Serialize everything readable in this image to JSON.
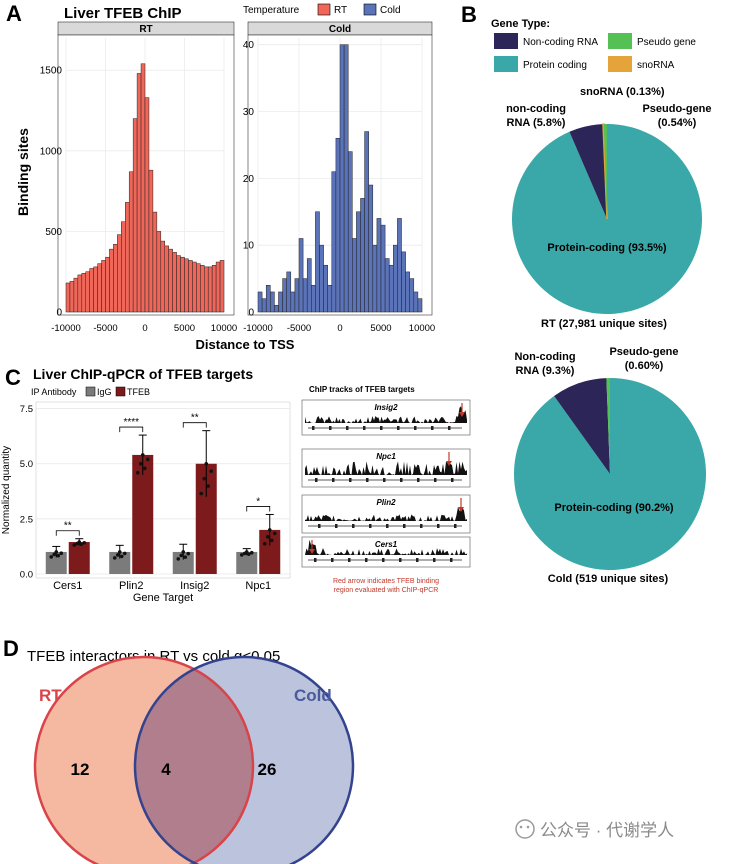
{
  "panels": {
    "A": {
      "letter": "A",
      "title": "Liver TFEB ChIP",
      "legend_title": "Temperature",
      "xlabel": "Distance to TSS",
      "ylabel": "Binding sites",
      "colors": {
        "RT": "#f0675a",
        "Cold": "#5b73b8"
      }
    },
    "B": {
      "letter": "B",
      "legend_title": "Gene Type:",
      "colors": {
        "non_coding": "#2c2557",
        "protein": "#3aa8a8",
        "pseudo": "#55c155",
        "snorna": "#e4a43a"
      }
    },
    "C": {
      "letter": "C",
      "title": "Liver ChIP-qPCR of TFEB targets",
      "antibody_label": "IP Antibody",
      "ylabel": "Normalized quantity",
      "xlabel": "Gene Target",
      "tracks_title": "ChIP tracks of TFEB targets",
      "tracks": [
        "Insig2",
        "Npc1",
        "Plin2",
        "Cers1"
      ],
      "tracks_note_line1": "Red arrow indicates TFEB binding",
      "tracks_note_line2": "region evaluated with ChIP-qPCR",
      "colors": {
        "IgG": "#7b7b7b",
        "TFEB": "#7d1a1c"
      }
    },
    "D": {
      "letter": "D",
      "title": "TFEB interactors in RT vs cold q<0.05",
      "label_rt": "RT",
      "label_cold": "Cold",
      "only_rt": "12",
      "overlap": "4",
      "only_cold": "26",
      "colors": {
        "rt_fill": "#f4b9a0",
        "rt_edge": "#d9444a",
        "cold_fill": "#bcc3dc",
        "cold_edge": "#34438f",
        "overlap": "#b07e8d"
      }
    }
  },
  "watermark": "公众号 · 代谢学人",
  "chart_data": [
    {
      "type": "bar",
      "title": "RT",
      "xlabel": "Distance to TSS",
      "ylabel": "Binding sites",
      "xlim": [
        -10000,
        10000
      ],
      "ylim": [
        0,
        1700
      ],
      "yticks": [
        0,
        500,
        1000,
        1500
      ],
      "xticks": [
        -10000,
        -5000,
        0,
        5000,
        10000
      ],
      "bin_width": 500,
      "x": [
        -9750,
        -9250,
        -8750,
        -8250,
        -7750,
        -7250,
        -6750,
        -6250,
        -5750,
        -5250,
        -4750,
        -4250,
        -3750,
        -3250,
        -2750,
        -2250,
        -1750,
        -1250,
        -750,
        -250,
        250,
        750,
        1250,
        1750,
        2250,
        2750,
        3250,
        3750,
        4250,
        4750,
        5250,
        5750,
        6250,
        6750,
        7250,
        7750,
        8250,
        8750,
        9250,
        9750
      ],
      "values": [
        180,
        190,
        210,
        230,
        240,
        250,
        270,
        280,
        300,
        320,
        340,
        390,
        420,
        480,
        560,
        680,
        870,
        1200,
        1480,
        1540,
        1330,
        880,
        620,
        500,
        440,
        410,
        390,
        370,
        350,
        340,
        330,
        320,
        310,
        300,
        290,
        280,
        280,
        290,
        310,
        320
      ]
    },
    {
      "type": "bar",
      "title": "Cold",
      "xlabel": "Distance to TSS",
      "xlim": [
        -10000,
        10000
      ],
      "ylim": [
        0,
        41
      ],
      "yticks": [
        0,
        10,
        20,
        30,
        40
      ],
      "xticks": [
        -10000,
        -5000,
        0,
        5000,
        10000
      ],
      "bin_width": 500,
      "x": [
        -9750,
        -9250,
        -8750,
        -8250,
        -7750,
        -7250,
        -6750,
        -6250,
        -5750,
        -5250,
        -4750,
        -4250,
        -3750,
        -3250,
        -2750,
        -2250,
        -1750,
        -1250,
        -750,
        -250,
        250,
        750,
        1250,
        1750,
        2250,
        2750,
        3250,
        3750,
        4250,
        4750,
        5250,
        5750,
        6250,
        6750,
        7250,
        7750,
        8250,
        8750,
        9250,
        9750
      ],
      "values": [
        3,
        2,
        4,
        3,
        1,
        3,
        5,
        6,
        3,
        5,
        11,
        5,
        8,
        4,
        15,
        10,
        7,
        4,
        21,
        26,
        40,
        40,
        24,
        11,
        15,
        17,
        27,
        19,
        10,
        14,
        13,
        8,
        7,
        10,
        14,
        9,
        6,
        5,
        3,
        2
      ]
    },
    {
      "type": "legend",
      "series": [
        {
          "name": "RT"
        },
        {
          "name": "Cold"
        }
      ]
    },
    {
      "type": "pie",
      "caption": "RT (27,981 unique sites)",
      "slices": [
        {
          "name": "Protein-coding",
          "label": "Protein-coding (93.5%)",
          "value": 93.5
        },
        {
          "name": "Non-coding RNA",
          "label": "non-coding RNA (5.8%)",
          "value": 5.8
        },
        {
          "name": "Pseudo gene",
          "label": "Pseudo-gene (0.54%)",
          "value": 0.54
        },
        {
          "name": "snoRNA",
          "label": "snoRNA (0.13%)",
          "value": 0.13
        }
      ],
      "legend": [
        "Non-coding RNA",
        "Pseudo gene",
        "Protein coding",
        "snoRNA"
      ]
    },
    {
      "type": "pie",
      "caption": "Cold (519 unique sites)",
      "slices": [
        {
          "name": "Protein-coding",
          "label": "Protein-coding (90.2%)",
          "value": 90.2
        },
        {
          "name": "Non-coding RNA",
          "label": "Non-coding RNA (9.3%)",
          "value": 9.3
        },
        {
          "name": "Pseudo gene",
          "label": "Pseudo-gene (0.60%)",
          "value": 0.6
        }
      ]
    },
    {
      "type": "bar",
      "title": "Liver ChIP-qPCR of TFEB targets",
      "xlabel": "Gene Target",
      "ylabel": "Normalized quantity",
      "ylim": [
        0,
        7.8
      ],
      "yticks": [
        "0.0",
        "2.5",
        "5.0",
        "7.5"
      ],
      "categories": [
        "Cers1",
        "Plin2",
        "Insig2",
        "Npc1"
      ],
      "series": [
        {
          "name": "IgG",
          "values": [
            1.0,
            1.0,
            1.0,
            1.0
          ],
          "error": [
            0.25,
            0.3,
            0.35,
            0.15
          ]
        },
        {
          "name": "TFEB",
          "values": [
            1.45,
            5.4,
            5.0,
            2.0
          ],
          "error": [
            0.15,
            0.9,
            1.5,
            0.7
          ]
        }
      ],
      "significance": [
        "**",
        "****",
        "**",
        "*"
      ]
    }
  ]
}
